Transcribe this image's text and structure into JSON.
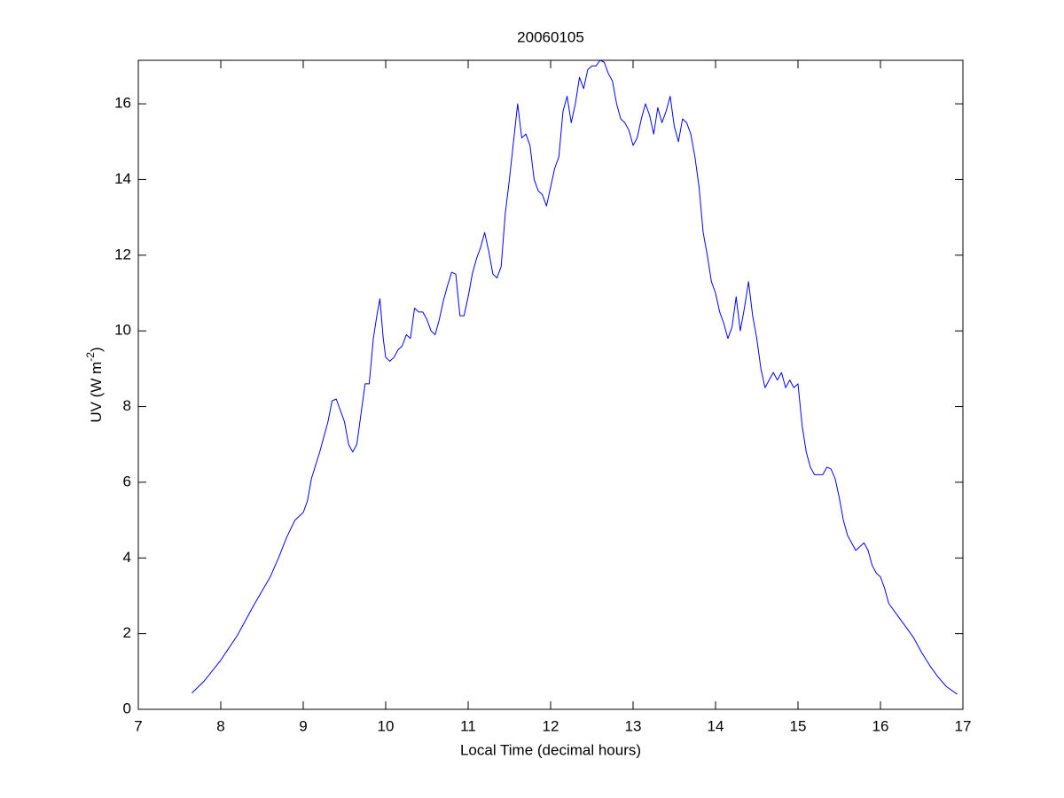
{
  "chart_data": {
    "type": "line",
    "title": "20060105",
    "xlabel": "Local Time (decimal hours)",
    "ylabel": {
      "text": "UV (W m",
      "superscript": "-2",
      "suffix": ")"
    },
    "color": "#0000ff",
    "xlim": [
      7,
      17
    ],
    "xticks": [
      7,
      8,
      9,
      10,
      11,
      12,
      13,
      14,
      15,
      16,
      17
    ],
    "ylim": [
      0,
      17.15
    ],
    "yticks": [
      0,
      2,
      4,
      6,
      8,
      10,
      12,
      14,
      16
    ],
    "grid": false,
    "x": [
      7.65,
      7.8,
      8.0,
      8.2,
      8.4,
      8.6,
      8.7,
      8.8,
      8.9,
      9.0,
      9.05,
      9.1,
      9.2,
      9.3,
      9.35,
      9.4,
      9.45,
      9.5,
      9.55,
      9.6,
      9.65,
      9.7,
      9.75,
      9.8,
      9.85,
      9.9,
      9.93,
      9.97,
      10.0,
      10.05,
      10.1,
      10.15,
      10.2,
      10.25,
      10.3,
      10.35,
      10.4,
      10.45,
      10.5,
      10.55,
      10.6,
      10.65,
      10.7,
      10.75,
      10.8,
      10.85,
      10.9,
      10.95,
      11.0,
      11.05,
      11.1,
      11.15,
      11.2,
      11.25,
      11.3,
      11.35,
      11.4,
      11.45,
      11.5,
      11.55,
      11.6,
      11.65,
      11.7,
      11.75,
      11.8,
      11.85,
      11.9,
      11.95,
      12.0,
      12.05,
      12.1,
      12.15,
      12.2,
      12.25,
      12.3,
      12.35,
      12.4,
      12.45,
      12.5,
      12.55,
      12.6,
      12.65,
      12.7,
      12.75,
      12.8,
      12.85,
      12.9,
      12.95,
      13.0,
      13.05,
      13.1,
      13.15,
      13.2,
      13.25,
      13.3,
      13.35,
      13.4,
      13.45,
      13.5,
      13.55,
      13.6,
      13.65,
      13.7,
      13.75,
      13.8,
      13.85,
      13.9,
      13.95,
      14.0,
      14.05,
      14.1,
      14.15,
      14.2,
      14.25,
      14.3,
      14.35,
      14.4,
      14.45,
      14.5,
      14.55,
      14.6,
      14.65,
      14.7,
      14.75,
      14.8,
      14.85,
      14.9,
      14.95,
      15.0,
      15.05,
      15.1,
      15.15,
      15.2,
      15.3,
      15.35,
      15.4,
      15.45,
      15.5,
      15.55,
      15.6,
      15.7,
      15.75,
      15.8,
      15.85,
      15.9,
      15.95,
      16.0,
      16.05,
      16.1,
      16.2,
      16.3,
      16.4,
      16.5,
      16.6,
      16.7,
      16.8,
      16.93
    ],
    "values": [
      0.43,
      0.75,
      1.3,
      1.95,
      2.75,
      3.5,
      4.0,
      4.55,
      5.0,
      5.2,
      5.5,
      6.1,
      6.8,
      7.6,
      8.15,
      8.2,
      7.9,
      7.6,
      7.0,
      6.8,
      7.0,
      7.8,
      8.6,
      8.6,
      9.8,
      10.5,
      10.85,
      9.8,
      9.3,
      9.2,
      9.3,
      9.5,
      9.6,
      9.9,
      9.8,
      10.6,
      10.5,
      10.5,
      10.3,
      10.0,
      9.9,
      10.3,
      10.8,
      11.2,
      11.55,
      11.5,
      10.4,
      10.4,
      10.9,
      11.5,
      11.9,
      12.2,
      12.6,
      12.1,
      11.5,
      11.4,
      11.7,
      13.1,
      14.0,
      15.0,
      16.0,
      15.1,
      15.2,
      14.9,
      14.0,
      13.7,
      13.6,
      13.3,
      13.8,
      14.3,
      14.6,
      15.8,
      16.2,
      15.5,
      16.0,
      16.7,
      16.4,
      16.9,
      17.0,
      17.0,
      17.15,
      17.1,
      16.8,
      16.6,
      16.0,
      15.6,
      15.5,
      15.3,
      14.9,
      15.1,
      15.6,
      16.0,
      15.7,
      15.2,
      15.9,
      15.5,
      15.8,
      16.2,
      15.4,
      15.0,
      15.6,
      15.5,
      15.2,
      14.6,
      13.8,
      12.6,
      12.0,
      11.3,
      11.0,
      10.5,
      10.2,
      9.8,
      10.1,
      10.9,
      10.0,
      10.6,
      11.3,
      10.4,
      9.8,
      9.0,
      8.5,
      8.7,
      8.9,
      8.7,
      8.9,
      8.5,
      8.7,
      8.5,
      8.6,
      7.5,
      6.8,
      6.4,
      6.2,
      6.2,
      6.4,
      6.35,
      6.1,
      5.6,
      5.0,
      4.6,
      4.2,
      4.3,
      4.4,
      4.2,
      3.8,
      3.6,
      3.5,
      3.2,
      2.8,
      2.5,
      2.2,
      1.9,
      1.5,
      1.15,
      0.85,
      0.6,
      0.4
    ]
  }
}
